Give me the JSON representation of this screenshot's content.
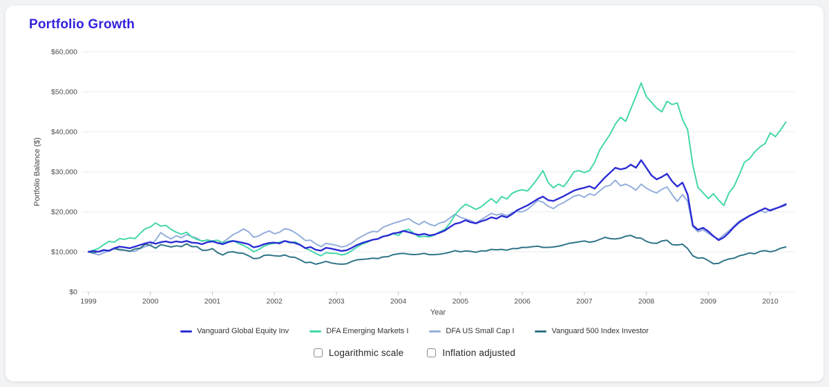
{
  "chart_data": {
    "type": "line",
    "title": "Portfolio Growth",
    "xlabel": "Year",
    "ylabel": "Portfolio Balance ($)",
    "x_start_year": 1999,
    "x_step_months": 1,
    "x_end": "2010-04",
    "x_tick_years": [
      1999,
      2000,
      2001,
      2002,
      2003,
      2004,
      2005,
      2006,
      2007,
      2008,
      2009,
      2010
    ],
    "y_ticks": [
      0,
      10000,
      20000,
      30000,
      40000,
      50000,
      60000
    ],
    "y_tick_labels": [
      "$0",
      "$10,000",
      "$20,000",
      "$30,000",
      "$40,000",
      "$50,000",
      "$60,000"
    ],
    "ylim": [
      0,
      60000
    ],
    "grid": "horizontal",
    "legend_position": "bottom",
    "series": [
      {
        "name": "DFA US Small Cap I",
        "color": "#93aedb",
        "width": 2,
        "values": [
          10000,
          9600,
          9200,
          9800,
          10200,
          10900,
          10700,
          10400,
          10200,
          10100,
          10800,
          11300,
          11700,
          12900,
          14800,
          13900,
          13200,
          14000,
          13500,
          14300,
          13800,
          13400,
          12600,
          13000,
          12600,
          12200,
          12400,
          13300,
          14300,
          14900,
          15700,
          15000,
          13600,
          14000,
          14700,
          15200,
          14500,
          14900,
          15800,
          15500,
          14800,
          13900,
          12800,
          12900,
          12000,
          11300,
          12100,
          11900,
          11600,
          11200,
          11500,
          12200,
          13200,
          13900,
          14600,
          15100,
          15000,
          16100,
          16600,
          17100,
          17500,
          17900,
          18300,
          17400,
          16800,
          17600,
          16900,
          16500,
          17200,
          17500,
          18500,
          19400,
          18600,
          18200,
          17800,
          17200,
          18000,
          18800,
          19600,
          19200,
          19500,
          19000,
          19800,
          20100,
          20000,
          20600,
          21700,
          22800,
          22400,
          21400,
          20800,
          21700,
          22300,
          23100,
          23900,
          24200,
          23600,
          24500,
          24100,
          25300,
          26300,
          26600,
          27900,
          26500,
          26900,
          26300,
          25400,
          26900,
          25900,
          25200,
          24700,
          25600,
          26200,
          24300,
          22600,
          24300,
          22600,
          16300,
          15000,
          15500,
          14600,
          13800,
          13200,
          14200,
          15300,
          16500,
          17700,
          18400,
          19100,
          19700,
          20400,
          19800,
          20500,
          20900,
          21200,
          21600
        ]
      },
      {
        "name": "Vanguard 500 Index Investor",
        "color": "#2e7386",
        "width": 2,
        "values": [
          10000,
          9700,
          10100,
          10500,
          10200,
          10800,
          10500,
          10400,
          10100,
          10700,
          10900,
          11900,
          11600,
          10900,
          11800,
          11500,
          11200,
          11500,
          11300,
          12000,
          11300,
          11300,
          10400,
          10400,
          10800,
          9800,
          9200,
          9900,
          10000,
          9700,
          9600,
          9000,
          8300,
          8400,
          9100,
          9200,
          9000,
          8900,
          9200,
          8700,
          8600,
          8000,
          7300,
          7400,
          6900,
          7200,
          7600,
          7200,
          7000,
          6900,
          7000,
          7600,
          8000,
          8100,
          8200,
          8400,
          8300,
          8700,
          8800,
          9300,
          9500,
          9600,
          9400,
          9300,
          9400,
          9600,
          9300,
          9300,
          9400,
          9600,
          9900,
          10300,
          10000,
          10200,
          10100,
          9900,
          10200,
          10200,
          10600,
          10500,
          10600,
          10400,
          10800,
          10800,
          11100,
          11100,
          11300,
          11400,
          11100,
          11100,
          11200,
          11400,
          11700,
          12100,
          12300,
          12500,
          12700,
          12400,
          12600,
          13100,
          13600,
          13300,
          13200,
          13400,
          13900,
          14100,
          13500,
          13400,
          12600,
          12200,
          12100,
          12700,
          12900,
          11800,
          11700,
          11900,
          10800,
          9000,
          8400,
          8500,
          7800,
          7000,
          7100,
          7800,
          8200,
          8400,
          9000,
          9300,
          9700,
          9500,
          10100,
          10300,
          10000,
          10300,
          10900,
          11200
        ]
      },
      {
        "name": "DFA Emerging Markets I",
        "color": "#43d7a7",
        "width": 2,
        "values": [
          10000,
          10400,
          10900,
          11800,
          12600,
          12400,
          13300,
          13100,
          13500,
          13300,
          14600,
          15800,
          16200,
          17200,
          16400,
          16600,
          15600,
          14900,
          14400,
          14900,
          13700,
          13100,
          12700,
          12900,
          12700,
          12900,
          12200,
          12600,
          12800,
          12100,
          11600,
          10900,
          10000,
          10600,
          11400,
          11900,
          12100,
          12400,
          12700,
          12200,
          12500,
          11800,
          10900,
          10300,
          9600,
          9000,
          9800,
          9600,
          9600,
          9200,
          9500,
          10300,
          11200,
          11900,
          12400,
          13000,
          13200,
          13900,
          14000,
          14500,
          14100,
          15300,
          15600,
          14600,
          13700,
          13900,
          13700,
          14200,
          15000,
          15600,
          17200,
          19300,
          20800,
          21900,
          21300,
          20600,
          21200,
          22300,
          23300,
          22200,
          23800,
          23200,
          24600,
          25200,
          25500,
          25200,
          26700,
          28400,
          30300,
          27300,
          26000,
          26900,
          26300,
          28000,
          30000,
          30300,
          29800,
          30300,
          32400,
          35500,
          37500,
          39400,
          41900,
          43600,
          42600,
          45700,
          48900,
          52200,
          48800,
          47400,
          45900,
          45000,
          47600,
          46800,
          47200,
          43100,
          40500,
          31600,
          26100,
          24700,
          23300,
          24500,
          22900,
          21600,
          24700,
          26400,
          29300,
          32400,
          33300,
          35000,
          36200,
          37100,
          39700,
          38800,
          40500,
          42400
        ]
      },
      {
        "name": "Vanguard Global Equity Inv",
        "color": "#2b2bd5",
        "width": 2.4,
        "values": [
          10000,
          10200,
          10000,
          10400,
          10300,
          10900,
          11300,
          11100,
          10900,
          11300,
          11700,
          12100,
          12400,
          12000,
          12400,
          12600,
          12300,
          12600,
          12400,
          12700,
          12300,
          12200,
          11900,
          12400,
          12600,
          12200,
          11900,
          12400,
          12700,
          12500,
          12200,
          11900,
          11100,
          11400,
          11900,
          12200,
          12300,
          12100,
          12700,
          12400,
          12200,
          11700,
          10900,
          11200,
          10500,
          10300,
          11000,
          10800,
          10500,
          10200,
          10400,
          11000,
          11700,
          12200,
          12600,
          13000,
          13200,
          13800,
          14100,
          14600,
          14800,
          15200,
          14900,
          14500,
          14200,
          14500,
          14100,
          14300,
          14800,
          15300,
          16200,
          17000,
          17300,
          17900,
          17400,
          17100,
          17600,
          18000,
          18600,
          18300,
          19000,
          18600,
          19400,
          20400,
          21000,
          21600,
          22400,
          23200,
          23800,
          22900,
          22700,
          23300,
          23900,
          24600,
          25300,
          25700,
          26000,
          26400,
          25800,
          27200,
          28600,
          29800,
          31000,
          30600,
          30900,
          31800,
          31000,
          32900,
          31000,
          29100,
          28100,
          28700,
          29500,
          27600,
          26300,
          27300,
          24300,
          16600,
          15500,
          16000,
          15100,
          13900,
          12900,
          13600,
          14800,
          16200,
          17400,
          18200,
          19000,
          19600,
          20300,
          20900,
          20300,
          20800,
          21300,
          21900
        ]
      }
    ],
    "legend_order": [
      "Vanguard Global Equity Inv",
      "DFA Emerging Markets I",
      "DFA US Small Cap I",
      "Vanguard 500 Index Investor"
    ]
  },
  "controls": {
    "checkboxes": [
      {
        "label": "Logarithmic scale",
        "checked": false
      },
      {
        "label": "Inflation adjusted",
        "checked": false
      }
    ]
  },
  "style": {
    "title_color": "#3222dd",
    "gridline_color": "#e8e9ec",
    "tick_color": "#c5c5c9",
    "tick_text_color": "#4d4d52",
    "axis_title_color": "#45454a"
  }
}
